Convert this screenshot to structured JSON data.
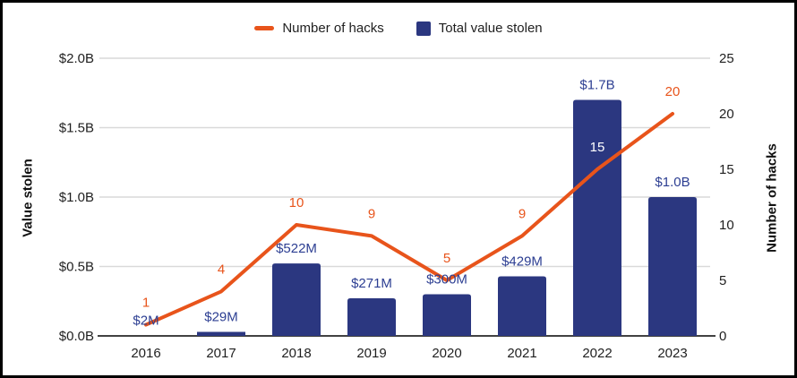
{
  "legend": {
    "items": [
      {
        "label": "Number of hacks",
        "swatch": "line-dash",
        "color": "#e8541b"
      },
      {
        "label": "Total value stolen",
        "swatch": "square",
        "color": "#2b3780"
      }
    ]
  },
  "chart_data": {
    "type": "combo-bar-line",
    "categories": [
      "2016",
      "2017",
      "2018",
      "2019",
      "2020",
      "2021",
      "2022",
      "2023"
    ],
    "series": [
      {
        "name": "Number of hacks",
        "type": "line",
        "axis": "right",
        "color": "#e8541b",
        "values": [
          1,
          4,
          10,
          9,
          5,
          9,
          15,
          20
        ],
        "point_labels": [
          "1",
          "4",
          "10",
          "9",
          "5",
          "9",
          "15",
          "20"
        ],
        "inside_bar_label_color": "#ffffff"
      },
      {
        "name": "Total value stolen",
        "type": "bar",
        "axis": "left",
        "color": "#2b3780",
        "values_usd_millions": [
          2,
          29,
          522,
          271,
          300,
          429,
          1700,
          1000
        ],
        "bar_labels": [
          "$2M",
          "$29M",
          "$522M",
          "$271M",
          "$300M",
          "$429M",
          "$1.7B",
          "$1.0B"
        ],
        "label_color": "#2c3e92"
      }
    ],
    "left_axis": {
      "title": "Value stolen",
      "tick_labels": [
        "$0.0B",
        "$0.5B",
        "$1.0B",
        "$1.5B",
        "$2.0B"
      ],
      "range_usd_billions": [
        0,
        2
      ]
    },
    "right_axis": {
      "title": "Number of hacks",
      "tick_labels": [
        "0",
        "5",
        "10",
        "15",
        "20",
        "25"
      ],
      "range": [
        0,
        25
      ]
    },
    "grid": true,
    "legend_position": "top"
  },
  "style": {
    "background": "#ffffff",
    "frame_border": "#000000",
    "gridline_color": "#d9d9d9",
    "axis_line_color": "#424242",
    "tick_label_color": "#1f1f1f",
    "legend_text_color": "#1f1f1f"
  }
}
